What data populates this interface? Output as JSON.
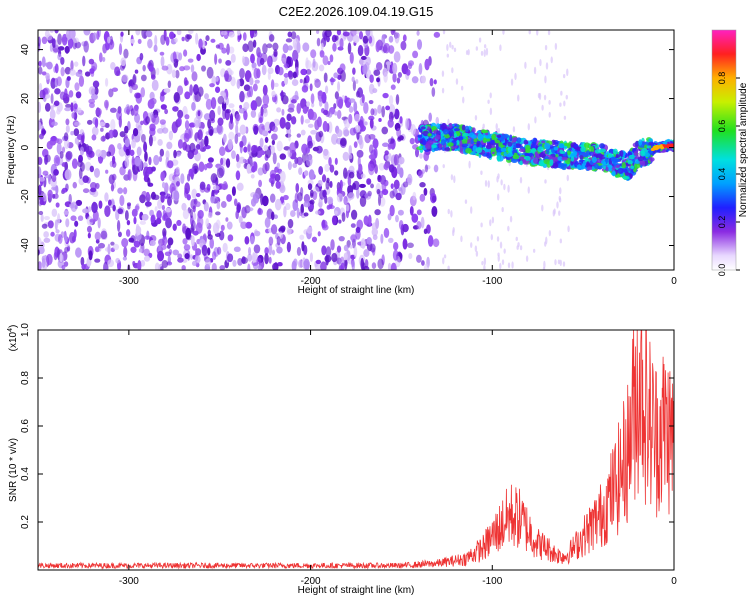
{
  "title": "C2E2.2026.109.04.19.G15",
  "chart_data": [
    {
      "type": "heatmap",
      "title": "C2E2.2026.109.04.19.G15",
      "xlabel": "Height of straight line (km)",
      "ylabel": "Frequency (Hz)",
      "xlim": [
        -350,
        0
      ],
      "ylim": [
        -50,
        48
      ],
      "x_ticks": [
        -300,
        -200,
        -100,
        0
      ],
      "y_ticks": [
        -40,
        -20,
        0,
        20,
        40
      ],
      "grid": false,
      "colorbar": {
        "label": "Normalized spectral amplitude",
        "range": [
          0,
          1
        ],
        "ticks": [
          0.0,
          0.2,
          0.4,
          0.6,
          0.8
        ],
        "colormap": "white-purple-blue-cyan-green-yellow-red-magenta"
      },
      "features": {
        "noise_region_x": [
          -350,
          -140
        ],
        "signal_track": [
          [
            -140,
            4
          ],
          [
            -120,
            4
          ],
          [
            -100,
            1
          ],
          [
            -80,
            -2
          ],
          [
            -60,
            -3
          ],
          [
            -40,
            -4
          ],
          [
            -25,
            -8
          ],
          [
            -20,
            -3
          ],
          [
            -10,
            0
          ],
          [
            0,
            1
          ]
        ]
      }
    },
    {
      "type": "line",
      "xlabel": "Height of straight line (km)",
      "ylabel": "SNR (10 * v/v)",
      "yscale_label": "(x10",
      "yscale_exponent": "4",
      "xlim": [
        -350,
        0
      ],
      "ylim": [
        0,
        1.0
      ],
      "x_ticks": [
        -300,
        -200,
        -100,
        0
      ],
      "y_ticks": [
        0.2,
        0.4,
        0.6,
        0.8,
        1.0
      ],
      "grid": false,
      "color": "#ee3333",
      "series": [
        {
          "x": [
            -350,
            -300,
            -250,
            -200,
            -150,
            -130,
            -115,
            -105,
            -100,
            -95,
            -90,
            -85,
            -80,
            -75,
            -70,
            -65,
            -60,
            -55,
            -50,
            -45,
            -40,
            -35,
            -30,
            -25,
            -22,
            -18,
            -15,
            -10,
            -5,
            0
          ],
          "y": [
            0.02,
            0.02,
            0.02,
            0.02,
            0.02,
            0.03,
            0.05,
            0.1,
            0.15,
            0.2,
            0.25,
            0.23,
            0.18,
            0.12,
            0.1,
            0.07,
            0.06,
            0.1,
            0.15,
            0.2,
            0.25,
            0.33,
            0.42,
            0.55,
            0.75,
            0.9,
            0.7,
            0.6,
            0.65,
            0.58
          ]
        }
      ]
    }
  ]
}
